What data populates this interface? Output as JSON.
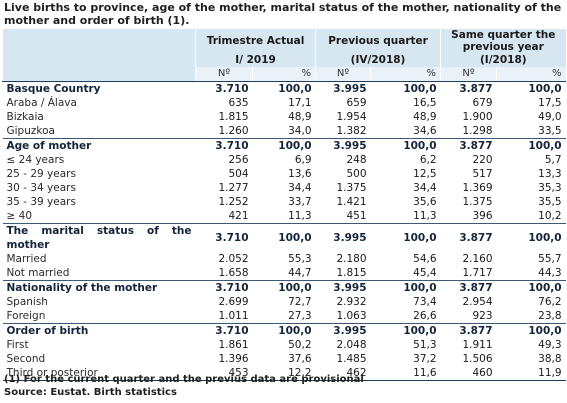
{
  "title": "Live births to province, age of the mother, marital status of the mother, nationality of the mother and order of birth (1).",
  "columns": {
    "group1_line1": "Trimestre Actual",
    "group1_line2": "I/ 2019",
    "group2_line1": "Previous quarter",
    "group2_line2": "(IV/2018)",
    "group3_line1": "Same quarter the previous year",
    "group3_line2": "(I/2018)",
    "sub_n": "Nº",
    "sub_pct": "%"
  },
  "sections": [
    {
      "label": "Basque Country",
      "values": [
        "3.710",
        "100,0",
        "3.995",
        "100,0",
        "3.877",
        "100,0"
      ],
      "rows": [
        {
          "label": "Araba / Álava",
          "values": [
            "635",
            "17,1",
            "659",
            "16,5",
            "679",
            "17,5"
          ]
        },
        {
          "label": "Bizkaia",
          "values": [
            "1.815",
            "48,9",
            "1.954",
            "48,9",
            "1.900",
            "49,0"
          ]
        },
        {
          "label": "Gipuzkoa",
          "values": [
            "1.260",
            "34,0",
            "1.382",
            "34,6",
            "1.298",
            "33,5"
          ]
        }
      ]
    },
    {
      "label": "Age of mother",
      "values": [
        "3.710",
        "100,0",
        "3.995",
        "100,0",
        "3.877",
        "100,0"
      ],
      "rows": [
        {
          "label": "≤ 24 years",
          "values": [
            "256",
            "6,9",
            "248",
            "6,2",
            "220",
            "5,7"
          ]
        },
        {
          "label": "25 - 29 years",
          "values": [
            "504",
            "13,6",
            "500",
            "12,5",
            "517",
            "13,3"
          ]
        },
        {
          "label": "30 - 34 years",
          "values": [
            "1.277",
            "34,4",
            "1.375",
            "34,4",
            "1.369",
            "35,3"
          ]
        },
        {
          "label": "35 - 39 years",
          "values": [
            "1.252",
            "33,7",
            "1.421",
            "35,6",
            "1.375",
            "35,5"
          ]
        },
        {
          "label": "≥ 40",
          "values": [
            "421",
            "11,3",
            "451",
            "11,3",
            "396",
            "10,2"
          ]
        }
      ]
    },
    {
      "label": "The marital status of the mother",
      "values": [
        "3.710",
        "100,0",
        "3.995",
        "100,0",
        "3.877",
        "100,0"
      ],
      "rows": [
        {
          "label": "Married",
          "values": [
            "2.052",
            "55,3",
            "2.180",
            "54,6",
            "2.160",
            "55,7"
          ]
        },
        {
          "label": "Not married",
          "values": [
            "1.658",
            "44,7",
            "1.815",
            "45,4",
            "1.717",
            "44,3"
          ]
        }
      ]
    },
    {
      "label": "Nationality of the mother",
      "values": [
        "3.710",
        "100,0",
        "3.995",
        "100,0",
        "3.877",
        "100,0"
      ],
      "rows": [
        {
          "label": "Spanish",
          "values": [
            "2.699",
            "72,7",
            "2.932",
            "73,4",
            "2.954",
            "76,2"
          ]
        },
        {
          "label": "Foreign",
          "values": [
            "1.011",
            "27,3",
            "1.063",
            "26,6",
            "923",
            "23,8"
          ]
        }
      ]
    },
    {
      "label": "Order of birth",
      "values": [
        "3.710",
        "100,0",
        "3.995",
        "100,0",
        "3.877",
        "100,0"
      ],
      "rows": [
        {
          "label": "First",
          "values": [
            "1.861",
            "50,2",
            "2.048",
            "51,3",
            "1.911",
            "49,3"
          ]
        },
        {
          "label": "Second",
          "values": [
            "1.396",
            "37,6",
            "1.485",
            "37,2",
            "1.506",
            "38,8"
          ]
        },
        {
          "label": "Third or posterior",
          "values": [
            "453",
            "12,2",
            "462",
            "11,6",
            "460",
            "11,9"
          ]
        }
      ]
    }
  ],
  "notes": {
    "note1": "(1) For the current quarter and the previus data are provisional",
    "source": "Source: Eustat. Birth statistics"
  }
}
